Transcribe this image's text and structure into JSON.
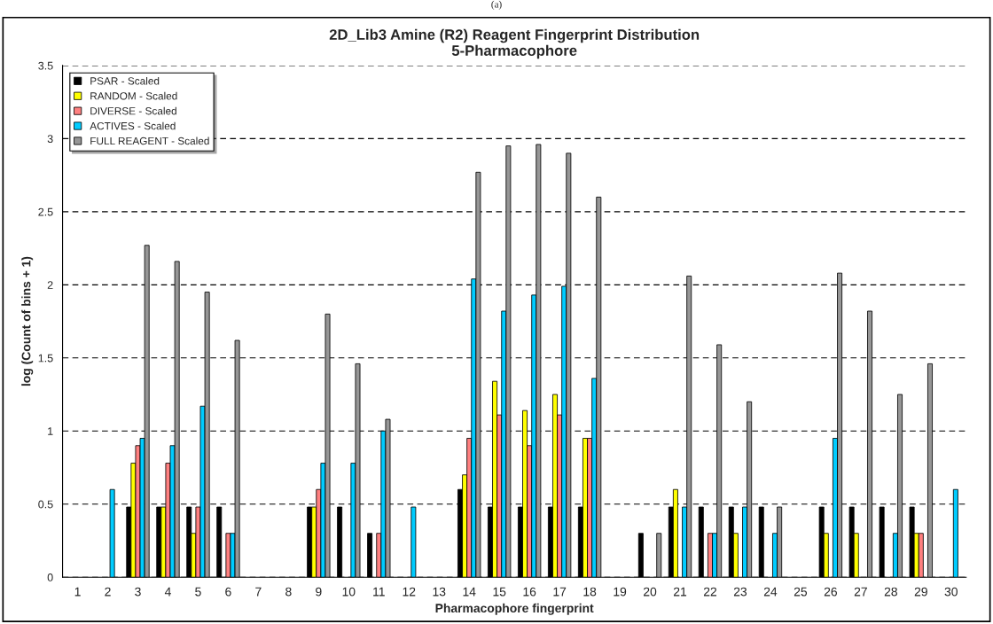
{
  "chart_data": {
    "type": "bar",
    "title": "2D_Lib3 Amine (R2) Reagent Fingerprint Distribution\n5-Pharmacophore",
    "xlabel": "Pharmacophore fingerprint",
    "ylabel": "log (Count of bins + 1)",
    "annotations": [
      "(a)"
    ],
    "categories": [
      "1",
      "2",
      "3",
      "4",
      "5",
      "6",
      "7",
      "8",
      "9",
      "10",
      "11",
      "12",
      "13",
      "14",
      "15",
      "16",
      "17",
      "18",
      "19",
      "20",
      "21",
      "22",
      "23",
      "24",
      "25",
      "26",
      "27",
      "28",
      "29",
      "30"
    ],
    "ylim": [
      0,
      3.5
    ],
    "yticks": [
      0,
      0.5,
      1,
      1.5,
      2,
      2.5,
      3,
      3.5
    ],
    "grid": "y",
    "legend": "top left",
    "series": [
      {
        "name": "PSAR - Scaled",
        "color": "#000000",
        "values": [
          null,
          null,
          0.48,
          0.48,
          0.48,
          0.48,
          null,
          null,
          0.48,
          0.48,
          0.3,
          null,
          null,
          0.6,
          0.48,
          0.48,
          0.48,
          0.48,
          null,
          0.3,
          0.48,
          0.48,
          0.48,
          0.48,
          null,
          0.48,
          0.48,
          0.48,
          0.48,
          null
        ]
      },
      {
        "name": "RANDOM - Scaled",
        "color": "#ffff00",
        "values": [
          null,
          null,
          0.78,
          0.48,
          0.3,
          null,
          null,
          null,
          0.48,
          null,
          null,
          null,
          null,
          0.7,
          1.34,
          1.14,
          1.25,
          0.95,
          null,
          null,
          0.6,
          null,
          0.3,
          null,
          null,
          0.3,
          0.3,
          null,
          0.3,
          null
        ]
      },
      {
        "name": "DIVERSE - Scaled",
        "color": "#ff8080",
        "values": [
          null,
          null,
          0.9,
          0.78,
          0.48,
          0.3,
          null,
          null,
          0.6,
          null,
          0.3,
          null,
          null,
          0.95,
          1.11,
          0.9,
          1.11,
          0.95,
          null,
          null,
          null,
          0.3,
          null,
          null,
          null,
          null,
          null,
          null,
          0.3,
          null
        ]
      },
      {
        "name": "ACTIVES - Scaled",
        "color": "#00ccff",
        "values": [
          null,
          0.6,
          0.95,
          0.9,
          1.17,
          0.3,
          null,
          null,
          0.78,
          0.78,
          1.0,
          0.48,
          null,
          2.04,
          1.82,
          1.93,
          1.99,
          1.36,
          null,
          null,
          0.48,
          0.3,
          0.48,
          0.3,
          null,
          0.95,
          null,
          0.3,
          null,
          0.6
        ]
      },
      {
        "name": "FULL REAGENT - Scaled",
        "color": "#969696",
        "values": [
          null,
          null,
          2.27,
          2.16,
          1.95,
          1.62,
          null,
          null,
          1.8,
          1.46,
          1.08,
          null,
          null,
          2.77,
          2.95,
          2.96,
          2.9,
          2.6,
          null,
          0.3,
          2.06,
          1.59,
          1.2,
          0.48,
          null,
          2.08,
          1.82,
          1.25,
          1.46,
          null
        ]
      }
    ]
  }
}
